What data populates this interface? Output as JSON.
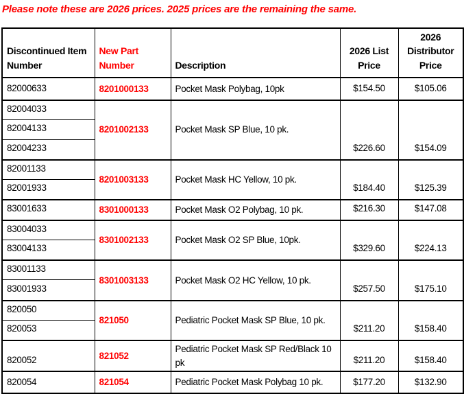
{
  "note": "Please note these are 2026 prices. 2025 prices are the remaining the same.",
  "colors": {
    "accent_red": "#FF0000",
    "text": "#000000",
    "border": "#000000",
    "background": "#FFFFFF"
  },
  "table": {
    "columns": [
      {
        "label": "Discontinued Item Number"
      },
      {
        "label": "New Part Number"
      },
      {
        "label": "Description"
      },
      {
        "label": "2026 List Price"
      },
      {
        "label": "2026 Distributor Price"
      }
    ],
    "groups": [
      {
        "discontinued": [
          "82000633"
        ],
        "new_part": "8201000133",
        "description": "Pocket Mask Polybag, 10pk",
        "list_price": "$154.50",
        "distributor_price": "$105.06"
      },
      {
        "discontinued": [
          "82004033",
          "82004133",
          "82004233"
        ],
        "new_part": "8201002133",
        "description": "Pocket Mask SP Blue, 10 pk.",
        "list_price": "$226.60",
        "distributor_price": "$154.09"
      },
      {
        "discontinued": [
          "82001133",
          "82001933"
        ],
        "new_part": "8201003133",
        "description": "Pocket Mask HC Yellow, 10 pk.",
        "list_price": "$184.40",
        "distributor_price": "$125.39"
      },
      {
        "discontinued": [
          "83001633"
        ],
        "new_part": "8301000133",
        "description": "Pocket Mask O2 Polybag, 10 pk.",
        "list_price": "$216.30",
        "distributor_price": "$147.08"
      },
      {
        "discontinued": [
          "83004033",
          "83004133"
        ],
        "new_part": "8301002133",
        "description": "Pocket Mask O2 SP Blue, 10pk.",
        "list_price": "$329.60",
        "distributor_price": "$224.13"
      },
      {
        "discontinued": [
          "83001133",
          "83001933"
        ],
        "new_part": "8301003133",
        "description": "Pocket Mask O2 HC Yellow, 10 pk.",
        "list_price": "$257.50",
        "distributor_price": "$175.10"
      },
      {
        "discontinued": [
          "820050",
          "820053"
        ],
        "new_part": "821050",
        "description": "Pediatric Pocket Mask SP Blue, 10 pk.",
        "list_price": "$211.20",
        "distributor_price": "$158.40"
      },
      {
        "discontinued": [
          "820052"
        ],
        "new_part": "821052",
        "description": "Pediatric Pocket Mask SP Red/Black 10 pk",
        "list_price": "$211.20",
        "distributor_price": "$158.40"
      },
      {
        "discontinued": [
          "820054"
        ],
        "new_part": "821054",
        "description": "Pediatric Pocket Mask Polybag 10 pk.",
        "list_price": "$177.20",
        "distributor_price": "$132.90"
      }
    ]
  }
}
